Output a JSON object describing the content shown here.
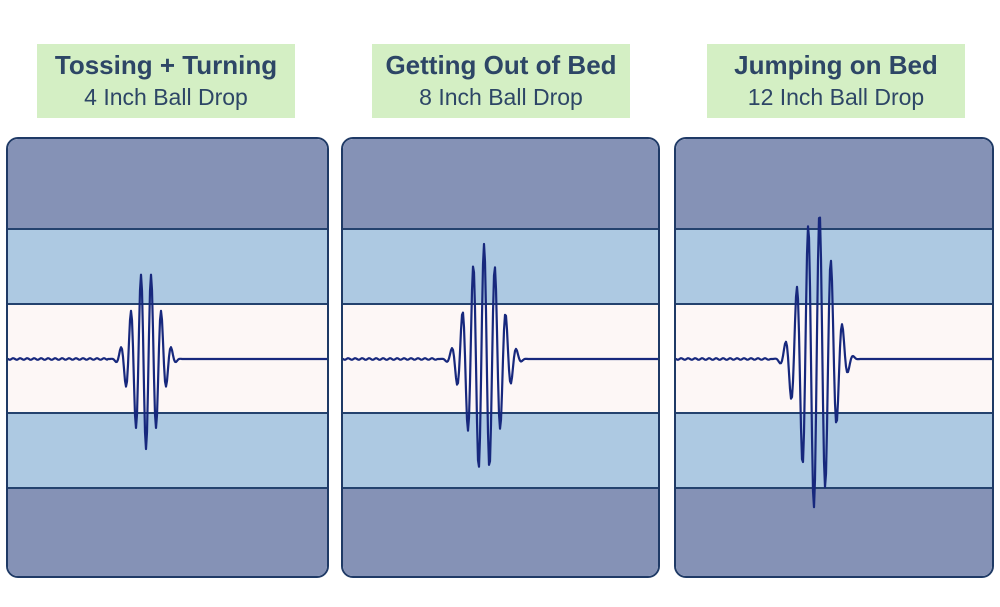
{
  "chart_data": {
    "type": "line",
    "panels": [
      {
        "title": "Tossing + Turning",
        "subtitle": "4 Inch Ball Drop"
      },
      {
        "title": "Getting Out of Bed",
        "subtitle": "8 Inch Ball Drop"
      },
      {
        "title": "Jumping on Bed",
        "subtitle": "12 Inch Ball Drop"
      }
    ],
    "grid": false,
    "legend": "none",
    "colors": {
      "wave": "#17287d",
      "label_bg": "#d4efc4",
      "band_outer": "#8592b6",
      "band_mid": "#adc9e2",
      "band_core": "#fdf7f6",
      "border": "#1f3a66"
    }
  }
}
